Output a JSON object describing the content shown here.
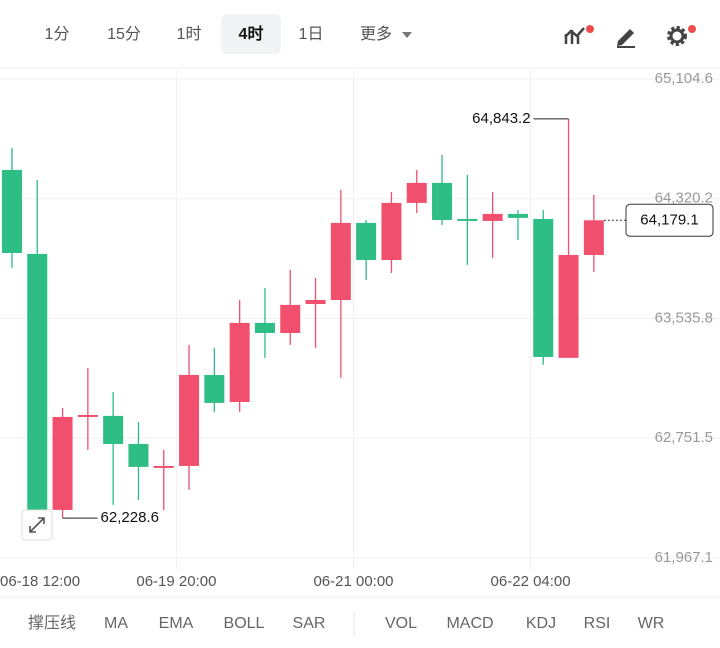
{
  "toolbar": {
    "intervals": [
      "1分",
      "15分",
      "1时",
      "4时",
      "1日"
    ],
    "more": "更多",
    "indicators": [
      "撑压线",
      "MA",
      "EMA",
      "BOLL",
      "SAR",
      "VOL",
      "MACD",
      "KDJ",
      "RSI",
      "WR"
    ]
  },
  "chart_data": {
    "type": "candlestick",
    "categories": [
      "06-18 12:00",
      null,
      null,
      null,
      null,
      null,
      null,
      null,
      "06-19 20:00",
      null,
      null,
      null,
      null,
      null,
      null,
      "06-21 00:00",
      null,
      null,
      null,
      null,
      null,
      null,
      "06-22 04:00",
      null,
      null
    ],
    "open": [
      null,
      64509,
      63959,
      62282,
      62891,
      62898,
      62714,
      62557,
      62570,
      63166,
      62989,
      63507,
      63441,
      63631,
      63657,
      64162,
      63919,
      64293,
      64424,
      64188,
      64175,
      64221,
      64188,
      63278,
      63952
    ],
    "high": [
      null,
      64653,
      64443,
      62950,
      63212,
      63055,
      62858,
      62675,
      63363,
      63343,
      63657,
      63736,
      63854,
      63802,
      64378,
      64181,
      64365,
      64509,
      64607,
      64476,
      64365,
      64247,
      64247,
      64843.2,
      64345
    ],
    "low": [
      null,
      63867,
      62240,
      62228.6,
      62675,
      62315,
      62347,
      62282,
      62413,
      62924,
      62924,
      63278,
      63363,
      63343,
      63147,
      63788,
      63834,
      64227,
      64149,
      63887,
      63933,
      64050,
      63232,
      63278,
      63841
    ],
    "close": [
      null,
      63965,
      62282,
      62891,
      62904,
      62714,
      62564,
      62570,
      63166,
      62983,
      63507,
      63441,
      63625,
      63657,
      64162,
      63919,
      64293,
      64424,
      64181,
      64175,
      64221,
      64195,
      63284,
      63952,
      64179.1
    ],
    "up_color": "#f0506e",
    "down_color": "#2ebd85",
    "ylim": [
      61888.5,
      65163.6
    ],
    "yticks": [
      {
        "value": 61967.1,
        "label": "61,967.1"
      },
      {
        "value": 62751.5,
        "label": "62,751.5"
      },
      {
        "value": 63535.8,
        "label": "63,535.8"
      },
      {
        "value": 64320.2,
        "label": "64,320.2"
      },
      {
        "value": 65104.6,
        "label": "65,104.6"
      }
    ],
    "grid": true,
    "max_marker": {
      "value": 64843.2,
      "label": "64,843.2"
    },
    "min_marker": {
      "value": 62228.6,
      "label": "62,228.6"
    },
    "last_price": {
      "value": 64179.1,
      "label": "64,179.1"
    }
  }
}
